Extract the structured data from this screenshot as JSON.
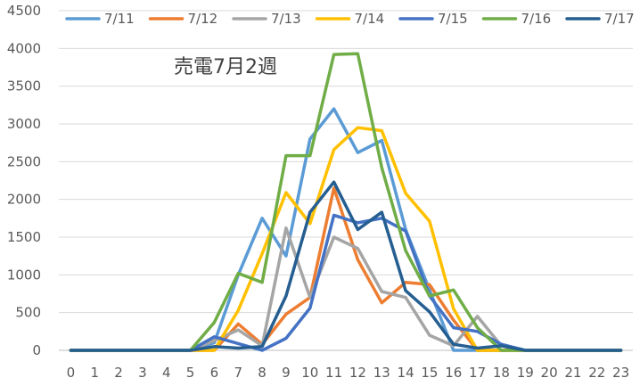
{
  "chart_data": {
    "type": "line",
    "title": "売電7月2週",
    "xlabel": "",
    "ylabel": "",
    "x": [
      0,
      1,
      2,
      3,
      4,
      5,
      6,
      7,
      8,
      9,
      10,
      11,
      12,
      13,
      14,
      15,
      16,
      17,
      18,
      19,
      20,
      21,
      22,
      23
    ],
    "ylim": [
      0,
      4500
    ],
    "yticks": [
      0,
      500,
      1000,
      1500,
      2000,
      2500,
      3000,
      3500,
      4000,
      4500
    ],
    "grid": true,
    "legend_position": "top",
    "series": [
      {
        "name": "7/11",
        "color": "#5b9bd5",
        "values": [
          0,
          0,
          0,
          0,
          0,
          0,
          100,
          1000,
          1750,
          1250,
          2800,
          3200,
          2620,
          2780,
          1600,
          800,
          0,
          0,
          0,
          0,
          0,
          0,
          0,
          0
        ]
      },
      {
        "name": "7/12",
        "color": "#ed7d31",
        "values": [
          0,
          0,
          0,
          0,
          0,
          0,
          0,
          350,
          80,
          480,
          700,
          2150,
          1200,
          630,
          900,
          870,
          400,
          0,
          0,
          0,
          0,
          0,
          0,
          0
        ]
      },
      {
        "name": "7/13",
        "color": "#a5a5a5",
        "values": [
          0,
          0,
          0,
          0,
          0,
          0,
          130,
          270,
          60,
          1620,
          700,
          1500,
          1350,
          780,
          700,
          200,
          60,
          450,
          60,
          0,
          0,
          0,
          0,
          0
        ]
      },
      {
        "name": "7/14",
        "color": "#ffc000",
        "values": [
          0,
          0,
          0,
          0,
          0,
          0,
          0,
          530,
          1280,
          2090,
          1680,
          2660,
          2950,
          2910,
          2080,
          1710,
          550,
          0,
          0,
          0,
          0,
          0,
          0,
          0
        ]
      },
      {
        "name": "7/15",
        "color": "#4472c4",
        "values": [
          0,
          0,
          0,
          0,
          0,
          0,
          180,
          90,
          0,
          160,
          560,
          1790,
          1690,
          1750,
          1580,
          720,
          300,
          250,
          80,
          0,
          0,
          0,
          0,
          0
        ]
      },
      {
        "name": "7/16",
        "color": "#70ad47",
        "values": [
          0,
          0,
          0,
          0,
          0,
          0,
          370,
          1020,
          900,
          2580,
          2580,
          3920,
          3930,
          2420,
          1320,
          720,
          800,
          300,
          0,
          0,
          0,
          0,
          0,
          0
        ]
      },
      {
        "name": "7/17",
        "color": "#255e91",
        "values": [
          0,
          0,
          0,
          0,
          0,
          0,
          50,
          30,
          50,
          720,
          1830,
          2230,
          1600,
          1830,
          790,
          510,
          80,
          30,
          60,
          0,
          0,
          0,
          0,
          0
        ]
      }
    ]
  }
}
